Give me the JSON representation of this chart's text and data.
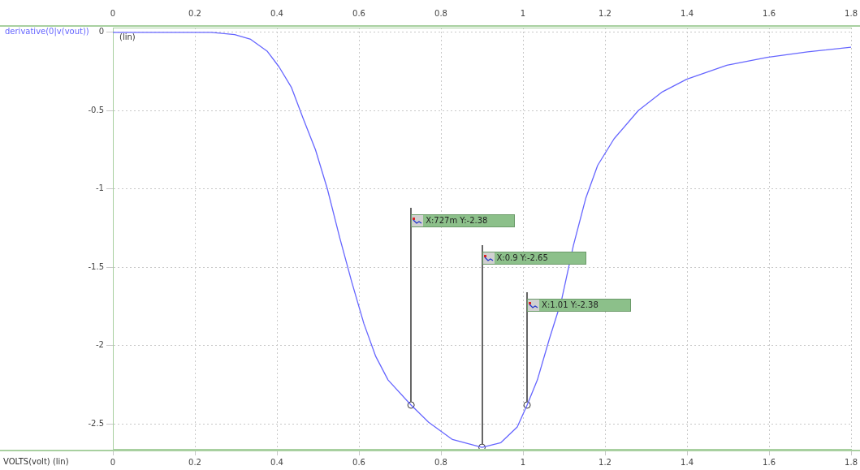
{
  "chart_data": {
    "type": "line",
    "ylabel": "derivative(0|v(vout))",
    "xlabel": "VOLTS(volt) (lin)",
    "x": [
      0,
      0.1,
      0.2,
      0.24,
      0.297,
      0.336,
      0.376,
      0.405,
      0.435,
      0.464,
      0.494,
      0.523,
      0.553,
      0.582,
      0.612,
      0.641,
      0.671,
      0.727,
      0.77,
      0.828,
      0.9,
      0.946,
      0.986,
      1.01,
      1.035,
      1.064,
      1.094,
      1.123,
      1.153,
      1.182,
      1.222,
      1.281,
      1.34,
      1.399,
      1.497,
      1.596,
      1.694,
      1.8
    ],
    "series": [
      {
        "color": "#6666ff",
        "values": [
          0,
          0,
          0,
          0,
          -0.015,
          -0.045,
          -0.12,
          -0.22,
          -0.35,
          -0.55,
          -0.75,
          -1.0,
          -1.31,
          -1.59,
          -1.86,
          -2.07,
          -2.22,
          -2.38,
          -2.49,
          -2.6,
          -2.65,
          -2.62,
          -2.52,
          -2.38,
          -2.22,
          -1.96,
          -1.71,
          -1.36,
          -1.06,
          -0.85,
          -0.68,
          -0.5,
          -0.38,
          -0.3,
          -0.21,
          -0.16,
          -0.125,
          -0.095
        ]
      },
      {
        "type": "scatter",
        "color": "#333333",
        "marker": "circle",
        "x": [
          0.727,
          0.9,
          1.01
        ],
        "values": [
          -2.38,
          -2.65,
          -2.38
        ]
      }
    ],
    "xlim": [
      0,
      1.8
    ],
    "xticks": [
      0,
      0.2,
      0.4,
      0.6,
      0.8,
      1,
      1.2,
      1.4,
      1.6,
      1.8
    ],
    "x2lim": [
      0,
      1.8
    ],
    "x2ticks": [
      0,
      0.2,
      0.4,
      0.6,
      0.8,
      1,
      1.2,
      1.4,
      1.6,
      1.8
    ],
    "ylim": [
      -2.66,
      0.03
    ],
    "yticks": [
      0,
      -0.5,
      -1,
      -1.5,
      -2,
      -2.5
    ],
    "annotations": [
      "(lin)",
      "X:727m Y:-2.38",
      "X:0.9 Y:-2.65",
      "X:1.01 Y:-2.38"
    ],
    "grid": true,
    "legend": false,
    "marker": "none",
    "line_style": "solid"
  }
}
